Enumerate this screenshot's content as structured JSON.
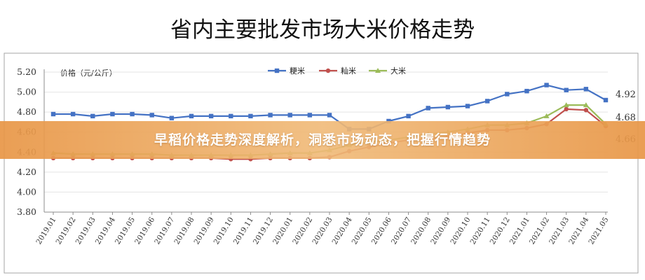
{
  "chart_data": {
    "type": "line",
    "title": "省内主要批发市场大米价格走势",
    "ylabel": "价格（元/公斤）",
    "ylim": [
      3.8,
      5.2
    ],
    "yticks": [
      "3.80",
      "4.00",
      "4.20",
      "4.40",
      "4.60",
      "4.80",
      "5.00",
      "5.20"
    ],
    "legend_position": "top-center",
    "categories": [
      "2019.01",
      "2019.02",
      "2019.03",
      "2019.04",
      "2019.05",
      "2019.06",
      "2019.07",
      "2019.08",
      "2019.09",
      "2019.10",
      "2019.11",
      "2019.12",
      "2020.01",
      "2020.02",
      "2020.03",
      "2020.04",
      "2020.05",
      "2020.06",
      "2020.07",
      "2020.08",
      "2020.09",
      "2020.10",
      "2020.11",
      "2020.12",
      "2021.01",
      "2021.02",
      "2021.03",
      "2021.04",
      "2021.05"
    ],
    "series": [
      {
        "name": "粳米",
        "color": "#4472c4",
        "marker": "square",
        "values": [
          4.78,
          4.78,
          4.76,
          4.78,
          4.78,
          4.77,
          4.74,
          4.76,
          4.76,
          4.76,
          4.76,
          4.77,
          4.77,
          4.77,
          4.77,
          4.63,
          4.63,
          4.71,
          4.76,
          4.84,
          4.85,
          4.86,
          4.91,
          4.98,
          5.01,
          5.07,
          5.02,
          5.03,
          4.92
        ]
      },
      {
        "name": "籼米",
        "color": "#c0504d",
        "marker": "circle",
        "values": [
          4.34,
          4.34,
          4.34,
          4.34,
          4.34,
          4.34,
          4.34,
          4.34,
          4.34,
          4.33,
          4.33,
          4.34,
          4.34,
          4.34,
          4.35,
          4.41,
          4.45,
          4.49,
          4.52,
          4.53,
          4.55,
          4.59,
          4.62,
          4.62,
          4.64,
          4.68,
          4.83,
          4.82,
          4.66
        ]
      },
      {
        "name": "大米",
        "color": "#9bbb59",
        "marker": "triangle",
        "values": [
          4.39,
          4.38,
          4.38,
          4.38,
          4.38,
          4.38,
          4.37,
          4.37,
          4.37,
          4.37,
          4.37,
          4.38,
          4.39,
          4.39,
          4.42,
          4.47,
          4.5,
          4.52,
          4.55,
          4.58,
          4.6,
          4.63,
          4.67,
          4.67,
          4.69,
          4.76,
          4.87,
          4.87,
          4.68
        ]
      }
    ],
    "end_labels": [
      "4.92",
      "4.68",
      "4.66"
    ]
  },
  "banner": {
    "text": "早稻价格走势深度解析，洞悉市场动态，把握行情趋势"
  }
}
